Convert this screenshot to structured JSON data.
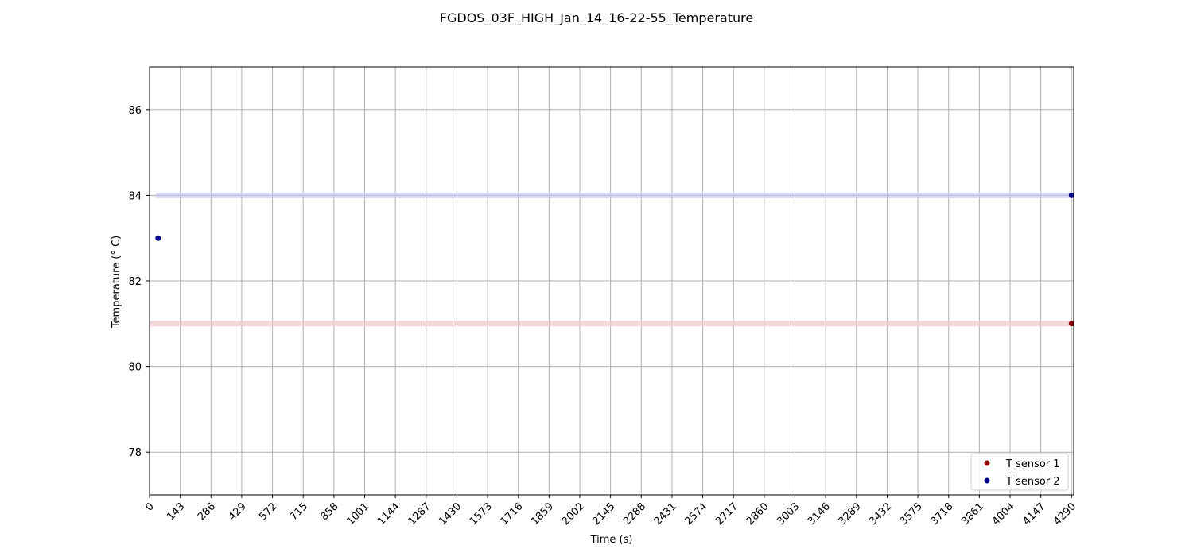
{
  "chart_data": {
    "type": "scatter",
    "title": "FGDOS_03F_HIGH_Jan_14_16-22-55_Temperature",
    "xlabel": "Time (s)",
    "ylabel": "Temperature (° C)",
    "xlim": [
      0,
      4300
    ],
    "ylim": [
      77,
      87
    ],
    "x_ticks": [
      0,
      143,
      286,
      429,
      572,
      715,
      858,
      1001,
      1144,
      1287,
      1430,
      1573,
      1716,
      1859,
      2002,
      2145,
      2288,
      2431,
      2574,
      2717,
      2860,
      3003,
      3146,
      3289,
      3432,
      3575,
      3718,
      3861,
      4004,
      4147,
      4290
    ],
    "y_ticks": [
      78,
      80,
      82,
      84,
      86
    ],
    "grid": true,
    "legend_position": "bottom-right",
    "series": [
      {
        "name": "T sensor 1",
        "color": "#8b0000",
        "band_color": "#f2c8cc",
        "band": {
          "x": [
            0,
            4290
          ],
          "y": 81
        },
        "points": [
          {
            "x": 4290,
            "y": 81
          }
        ]
      },
      {
        "name": "T sensor 2",
        "color": "#00008b",
        "band_color": "#c8c8ec",
        "band": {
          "x": [
            30,
            4290
          ],
          "y": 84
        },
        "points": [
          {
            "x": 40,
            "y": 83
          },
          {
            "x": 4290,
            "y": 84
          }
        ]
      }
    ]
  }
}
